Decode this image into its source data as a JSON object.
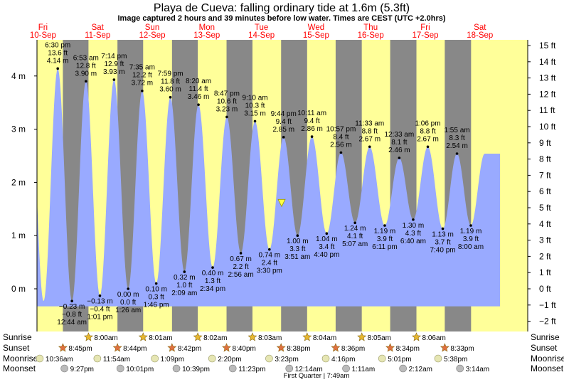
{
  "chart_data": {
    "type": "area",
    "title": "Playa de Cueva: falling  ordinary tide at 1.6m (5.3ft)",
    "subtitle": "Image captured 2 hours and 39 minutes before low water. Times are CEST (UTC +2.0hrs)",
    "days": [
      {
        "dow": "Fri",
        "date": "10-Sep"
      },
      {
        "dow": "Sat",
        "date": "11-Sep"
      },
      {
        "dow": "Sun",
        "date": "12-Sep"
      },
      {
        "dow": "Mon",
        "date": "13-Sep"
      },
      {
        "dow": "Tue",
        "date": "14-Sep"
      },
      {
        "dow": "Wed",
        "date": "15-Sep"
      },
      {
        "dow": "Thu",
        "date": "16-Sep"
      },
      {
        "dow": "Fri",
        "date": "17-Sep"
      },
      {
        "dow": "Sat",
        "date": "18-Sep"
      }
    ],
    "left_axis": {
      "unit": "m",
      "ticks": [
        "0 m",
        "1 m",
        "2 m",
        "3 m",
        "4 m"
      ]
    },
    "right_axis": {
      "unit": "ft",
      "ticks": [
        "−2 ft",
        "−1 ft",
        "0 ft",
        "1 ft",
        "2 ft",
        "3 ft",
        "4 ft",
        "5 ft",
        "6 ft",
        "7 ft",
        "8 ft",
        "9 ft",
        "10 ft",
        "11 ft",
        "12 ft",
        "13 ft",
        "14 ft",
        "15 ft"
      ]
    },
    "ylim_m": [
      -0.75,
      4.65
    ],
    "tides": [
      {
        "type": "high",
        "time": "6:30 pm",
        "ft": "13.6 ft",
        "m": "4.14 m",
        "h": 4.14
      },
      {
        "type": "low",
        "time": "12:44 am",
        "ft": "−0.8 ft",
        "m": "−0.23 m",
        "h": -0.23
      },
      {
        "type": "high",
        "time": "6:53 am",
        "ft": "12.8 ft",
        "m": "3.90 m",
        "h": 3.9
      },
      {
        "type": "low",
        "time": "1:01 pm",
        "ft": "−0.4 ft",
        "m": "−0.13 m",
        "h": -0.13
      },
      {
        "type": "high",
        "time": "7:14 pm",
        "ft": "12.9 ft",
        "m": "3.93 m",
        "h": 3.93
      },
      {
        "type": "low",
        "time": "1:26 am",
        "ft": "0.0 ft",
        "m": "0.00 m",
        "h": 0.0
      },
      {
        "type": "high",
        "time": "7:35 am",
        "ft": "12.2 ft",
        "m": "3.72 m",
        "h": 3.72
      },
      {
        "type": "low",
        "time": "1:46 pm",
        "ft": "0.3 ft",
        "m": "0.10 m",
        "h": 0.1
      },
      {
        "type": "high",
        "time": "7:59 pm",
        "ft": "11.8 ft",
        "m": "3.60 m",
        "h": 3.6
      },
      {
        "type": "low",
        "time": "2:09 am",
        "ft": "1.0 ft",
        "m": "0.32 m",
        "h": 0.32
      },
      {
        "type": "high",
        "time": "8:20 am",
        "ft": "11.4 ft",
        "m": "3.46 m",
        "h": 3.46
      },
      {
        "type": "low",
        "time": "2:34 pm",
        "ft": "1.3 ft",
        "m": "0.40 m",
        "h": 0.4
      },
      {
        "type": "high",
        "time": "8:47 pm",
        "ft": "10.6 ft",
        "m": "3.23 m",
        "h": 3.23
      },
      {
        "type": "low",
        "time": "2:56 am",
        "ft": "2.2 ft",
        "m": "0.67 m",
        "h": 0.67
      },
      {
        "type": "high",
        "time": "9:10 am",
        "ft": "10.3 ft",
        "m": "3.15 m",
        "h": 3.15
      },
      {
        "type": "low",
        "time": "3:30 pm",
        "ft": "2.4 ft",
        "m": "0.74 m",
        "h": 0.74
      },
      {
        "type": "high",
        "time": "9:44 pm",
        "ft": "9.4 ft",
        "m": "2.85 m",
        "h": 2.85
      },
      {
        "type": "low",
        "time": "3:51 am",
        "ft": "3.3 ft",
        "m": "1.00 m",
        "h": 1.0
      },
      {
        "type": "high",
        "time": "10:11 am",
        "ft": "9.4 ft",
        "m": "2.86 m",
        "h": 2.86
      },
      {
        "type": "low",
        "time": "4:40 pm",
        "ft": "3.4 ft",
        "m": "1.04 m",
        "h": 1.04
      },
      {
        "type": "high",
        "time": "10:57 pm",
        "ft": "8.4 ft",
        "m": "2.56 m",
        "h": 2.56
      },
      {
        "type": "low",
        "time": "5:07 am",
        "ft": "4.1 ft",
        "m": "1.24 m",
        "h": 1.24
      },
      {
        "type": "high",
        "time": "11:33 am",
        "ft": "8.8 ft",
        "m": "2.67 m",
        "h": 2.67
      },
      {
        "type": "low",
        "time": "6:11 pm",
        "ft": "3.9 ft",
        "m": "1.19 m",
        "h": 1.19
      },
      {
        "type": "high",
        "time": "12:33 am",
        "ft": "8.1 ft",
        "m": "2.46 m",
        "h": 2.46
      },
      {
        "type": "low",
        "time": "6:40 am",
        "ft": "4.3 ft",
        "m": "1.30 m",
        "h": 1.3
      },
      {
        "type": "high",
        "time": "1:06 pm",
        "ft": "8.8 ft",
        "m": "2.67 m",
        "h": 2.67
      },
      {
        "type": "low",
        "time": "7:40 pm",
        "ft": "3.7 ft",
        "m": "1.13 m",
        "h": 1.13
      },
      {
        "type": "high",
        "time": "1:55 am",
        "ft": "8.3 ft",
        "m": "2.54 m",
        "h": 2.54
      },
      {
        "type": "low",
        "time": "8:00 am",
        "ft": "3.9 ft",
        "m": "1.19 m",
        "h": 1.19
      }
    ],
    "current_level_m": 1.6,
    "colors": {
      "day": "#ffff99",
      "night": "#888888",
      "tide": "#99aaff",
      "day_label": "#ff0000",
      "star": "#e8b830",
      "star_sunset": "#e07040",
      "moon": "#e6e6b3",
      "moonset": "#bbbbbb",
      "marker": "#ffff44"
    },
    "grid": false,
    "rows": [
      {
        "name": "Sunrise",
        "icon": "sun-star-icon",
        "events": [
          "8:00am",
          "8:01am",
          "8:02am",
          "8:03am",
          "8:04am",
          "8:05am",
          "8:06am"
        ]
      },
      {
        "name": "Sunset",
        "icon": "sun-star-icon",
        "events": [
          "8:45pm",
          "8:44pm",
          "8:42pm",
          "8:40pm",
          "8:38pm",
          "8:36pm",
          "8:34pm",
          "8:33pm"
        ]
      },
      {
        "name": "Moonrise",
        "icon": "moon-circle-icon",
        "events": [
          "10:36am",
          "11:54am",
          "1:09pm",
          "2:20pm",
          "3:23pm",
          "4:16pm",
          "5:01pm",
          "5:38pm"
        ]
      },
      {
        "name": "Moonset",
        "icon": "moon-circle-icon",
        "events": [
          "9:27pm",
          "10:01pm",
          "10:39pm",
          "11:23pm",
          "12:14am",
          "1:11am",
          "2:12am",
          "3:14am"
        ]
      }
    ],
    "moon_phase": "First Quarter | 7:49am"
  }
}
